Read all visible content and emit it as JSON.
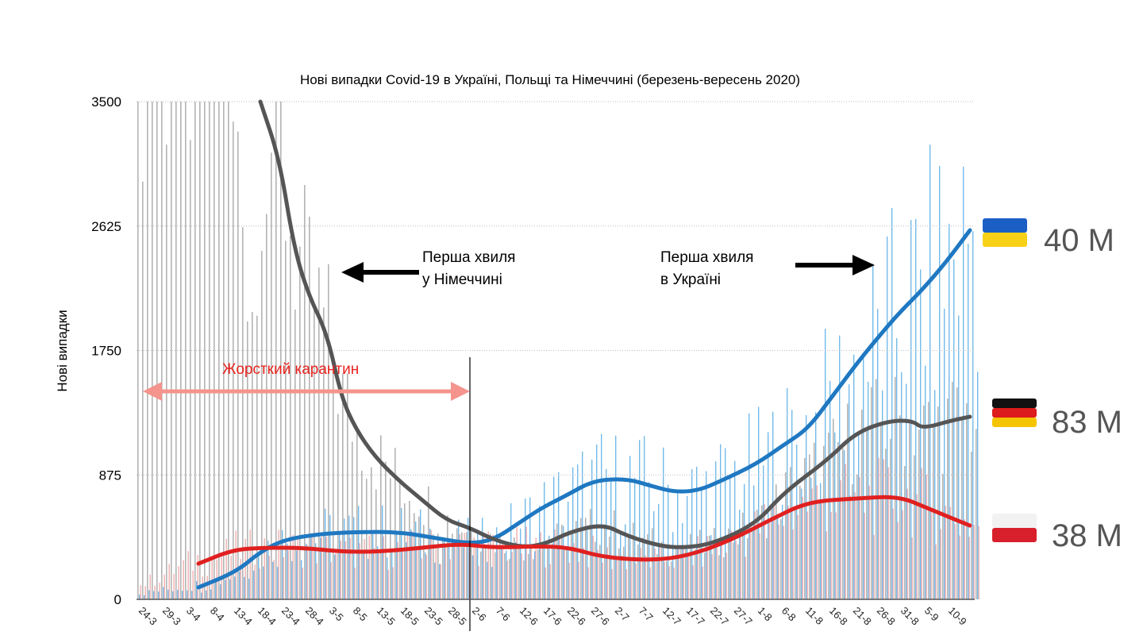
{
  "chart_data": {
    "type": "bar+line",
    "title": "Нові випадки Covid-19 в Україні, Польщі та Німеччині (березень-вересень 2020)",
    "ylabel": "Нові випадки",
    "xlabel": "",
    "ylim": [
      0,
      3500
    ],
    "yticks": [
      0,
      875,
      1750,
      2625,
      3500
    ],
    "grid": true,
    "x_start": "24-3",
    "xtick_labels": [
      "24-3",
      "29-3",
      "3-4",
      "8-4",
      "13-4",
      "18-4",
      "23-4",
      "28-4",
      "3-5",
      "8-5",
      "13-5",
      "18-5",
      "23-5",
      "28-5",
      "2-6",
      "7-6",
      "12-6",
      "17-6",
      "22-6",
      "27-6",
      "2-7",
      "7-7",
      "12-7",
      "17-7",
      "22-7",
      "27-7",
      "1-8",
      "6-8",
      "11-8",
      "16-8",
      "21-8",
      "26-8",
      "31-8",
      "5-9",
      "10-9"
    ],
    "series": [
      {
        "name": "Ukraine",
        "color": "#1f78c1",
        "bar_color": "#5aaee6",
        "population": "40 M",
        "flag": "ukraine-flag",
        "days": [
          13,
          21,
          26,
          31,
          38,
          46,
          55,
          63,
          70,
          75,
          80,
          85,
          90,
          96,
          103,
          108,
          113,
          118,
          123,
          130,
          136,
          141,
          146,
          151,
          155,
          160,
          165,
          170,
          175
        ],
        "values": [
          84,
          195,
          335,
          419,
          458,
          474,
          474,
          430,
          391,
          419,
          530,
          642,
          726,
          837,
          848,
          798,
          754,
          765,
          837,
          949,
          1088,
          1200,
          1423,
          1647,
          1814,
          2010,
          2177,
          2372,
          2596
        ]
      },
      {
        "name": "Germany",
        "color": "#555555",
        "bar_color": "#9a9a9a",
        "population": "83 M",
        "flag": "germany-flag",
        "days": [
          26,
          30,
          33,
          36,
          40,
          43,
          46,
          50,
          55,
          60,
          65,
          70,
          75,
          81,
          86,
          91,
          98,
          103,
          110,
          115,
          121,
          130,
          136,
          145,
          151,
          158,
          163,
          165,
          171,
          175
        ],
        "values": [
          3500,
          3098,
          2484,
          2149,
          1870,
          1423,
          1200,
          1005,
          837,
          698,
          558,
          502,
          419,
          363,
          391,
          474,
          530,
          446,
          374,
          363,
          391,
          530,
          754,
          977,
          1172,
          1256,
          1256,
          1200,
          1256,
          1284
        ]
      },
      {
        "name": "Poland",
        "color": "#e02020",
        "bar_color": "#f09a9a",
        "population": "38 M",
        "flag": "poland-flag",
        "days": [
          13,
          20,
          26,
          35,
          43,
          51,
          60,
          68,
          75,
          85,
          91,
          98,
          108,
          116,
          125,
          133,
          141,
          151,
          160,
          166,
          175
        ],
        "values": [
          251,
          346,
          363,
          363,
          335,
          335,
          363,
          391,
          363,
          374,
          363,
          296,
          273,
          307,
          419,
          558,
          687,
          709,
          726,
          642,
          519
        ]
      }
    ],
    "annotations": {
      "germany_wave": [
        "Перша хвиля",
        "у Німеччині"
      ],
      "ukraine_wave": [
        "Перша хвиля",
        "в Україні"
      ],
      "quarantine": "Жорсткий карантин",
      "quarantine_end": "2-6"
    }
  }
}
